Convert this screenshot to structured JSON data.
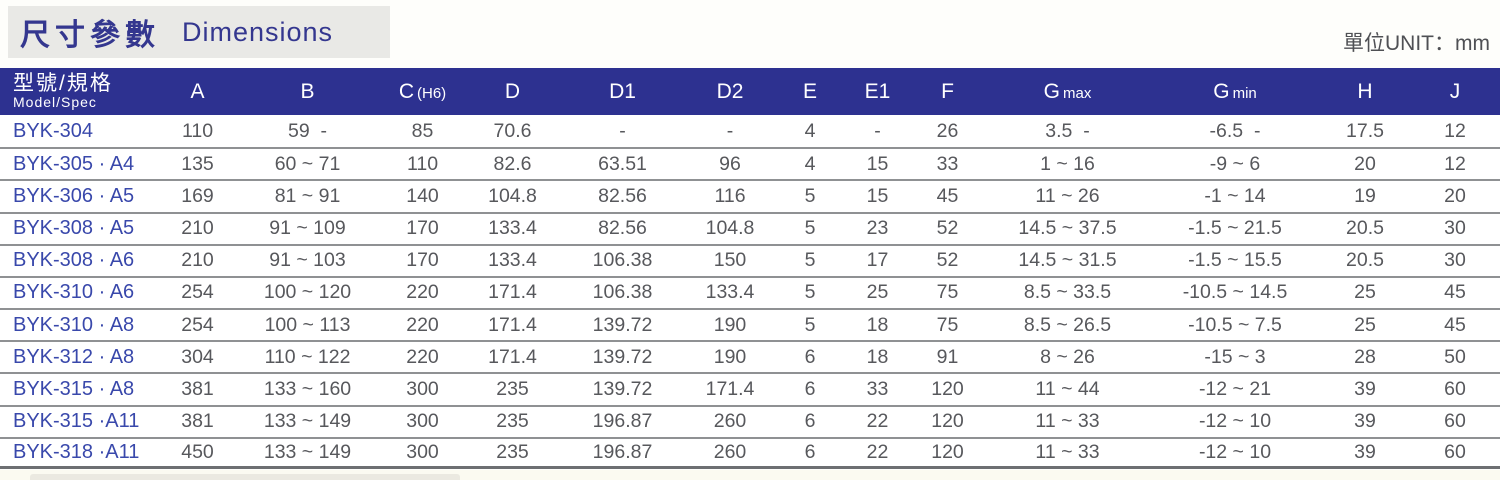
{
  "page": {
    "title_zh": "尺寸參數",
    "title_en": "Dimensions",
    "unit_label": "單位UNIT：mm"
  },
  "table": {
    "model_header": {
      "zh": "型號/規格",
      "en": "Model/Spec"
    },
    "columns": [
      {
        "main": "A",
        "sub": ""
      },
      {
        "main": "B",
        "sub": ""
      },
      {
        "main": "C",
        "sub": "(H6)"
      },
      {
        "main": "D",
        "sub": ""
      },
      {
        "main": "D1",
        "sub": ""
      },
      {
        "main": "D2",
        "sub": ""
      },
      {
        "main": "E",
        "sub": ""
      },
      {
        "main": "E1",
        "sub": ""
      },
      {
        "main": "F",
        "sub": ""
      },
      {
        "main": "G",
        "sub": "max"
      },
      {
        "main": "G",
        "sub": "min"
      },
      {
        "main": "H",
        "sub": ""
      },
      {
        "main": "J",
        "sub": ""
      }
    ],
    "rows": [
      {
        "model": "BYK-304",
        "values": [
          "110",
          "59  -",
          "85",
          "70.6",
          "-",
          "-",
          "4",
          "-",
          "26",
          "3.5  -",
          "-6.5  -",
          "17.5",
          "12"
        ]
      },
      {
        "model": "BYK-305 · A4",
        "values": [
          "135",
          "60 ~ 71",
          "110",
          "82.6",
          "63.51",
          "96",
          "4",
          "15",
          "33",
          "1 ~ 16",
          "-9 ~ 6",
          "20",
          "12"
        ]
      },
      {
        "model": "BYK-306 · A5",
        "values": [
          "169",
          "81 ~ 91",
          "140",
          "104.8",
          "82.56",
          "116",
          "5",
          "15",
          "45",
          "11 ~ 26",
          "-1 ~ 14",
          "19",
          "20"
        ]
      },
      {
        "model": "BYK-308 · A5",
        "values": [
          "210",
          "91 ~ 109",
          "170",
          "133.4",
          "82.56",
          "104.8",
          "5",
          "23",
          "52",
          "14.5 ~ 37.5",
          "-1.5 ~ 21.5",
          "20.5",
          "30"
        ]
      },
      {
        "model": "BYK-308 · A6",
        "values": [
          "210",
          "91 ~ 103",
          "170",
          "133.4",
          "106.38",
          "150",
          "5",
          "17",
          "52",
          "14.5 ~ 31.5",
          "-1.5 ~ 15.5",
          "20.5",
          "30"
        ]
      },
      {
        "model": "BYK-310 · A6",
        "values": [
          "254",
          "100 ~ 120",
          "220",
          "171.4",
          "106.38",
          "133.4",
          "5",
          "25",
          "75",
          "8.5 ~ 33.5",
          "-10.5 ~ 14.5",
          "25",
          "45"
        ]
      },
      {
        "model": "BYK-310 · A8",
        "values": [
          "254",
          "100 ~ 113",
          "220",
          "171.4",
          "139.72",
          "190",
          "5",
          "18",
          "75",
          "8.5 ~ 26.5",
          "-10.5 ~ 7.5",
          "25",
          "45"
        ]
      },
      {
        "model": "BYK-312 · A8",
        "values": [
          "304",
          "110 ~ 122",
          "220",
          "171.4",
          "139.72",
          "190",
          "6",
          "18",
          "91",
          "8 ~ 26",
          "-15 ~ 3",
          "28",
          "50"
        ]
      },
      {
        "model": "BYK-315 · A8",
        "values": [
          "381",
          "133 ~ 160",
          "300",
          "235",
          "139.72",
          "171.4",
          "6",
          "33",
          "120",
          "11 ~ 44",
          "-12 ~ 21",
          "39",
          "60"
        ]
      },
      {
        "model": "BYK-315 ·A11",
        "values": [
          "381",
          "133 ~ 149",
          "300",
          "235",
          "196.87",
          "260",
          "6",
          "22",
          "120",
          "11 ~ 33",
          "-12 ~ 10",
          "39",
          "60"
        ]
      },
      {
        "model": "BYK-318 ·A11",
        "values": [
          "450",
          "133 ~ 149",
          "300",
          "235",
          "196.87",
          "260",
          "6",
          "22",
          "120",
          "11 ~ 33",
          "-12 ~ 10",
          "39",
          "60"
        ]
      }
    ]
  }
}
